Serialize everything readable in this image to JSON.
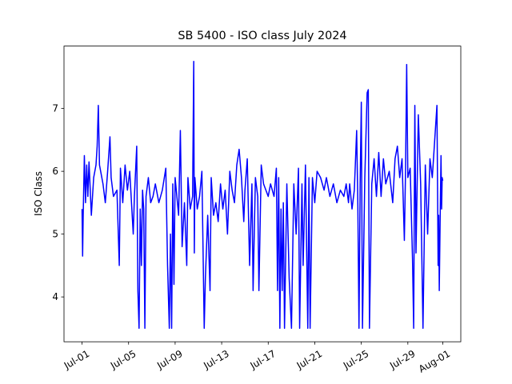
{
  "chart_data": {
    "type": "line",
    "title": "SB 5400 - ISO class July 2024",
    "ylabel": "ISO Class",
    "x": [
      1.0,
      1.05,
      1.1,
      1.2,
      1.3,
      1.4,
      1.5,
      1.6,
      1.8,
      2.0,
      2.2,
      2.3,
      2.4,
      2.5,
      2.8,
      3.0,
      3.2,
      3.4,
      3.5,
      3.7,
      4.0,
      4.2,
      4.3,
      4.5,
      4.7,
      4.9,
      5.1,
      5.4,
      5.5,
      5.7,
      5.8,
      5.9,
      6.0,
      6.1,
      6.2,
      6.3,
      6.4,
      6.5,
      6.7,
      6.9,
      7.1,
      7.3,
      7.6,
      7.9,
      8.2,
      8.35,
      8.5,
      8.6,
      8.7,
      8.8,
      8.9,
      9.0,
      9.3,
      9.45,
      9.6,
      9.8,
      10.0,
      10.1,
      10.3,
      10.5,
      10.6,
      10.65,
      10.7,
      10.9,
      11.1,
      11.3,
      11.5,
      11.6,
      11.8,
      12.0,
      12.1,
      12.3,
      12.5,
      12.7,
      12.9,
      13.1,
      13.3,
      13.5,
      13.7,
      13.9,
      14.1,
      14.3,
      14.5,
      14.7,
      14.9,
      15.0,
      15.2,
      15.4,
      15.6,
      15.7,
      15.9,
      16.1,
      16.2,
      16.4,
      16.6,
      17.0,
      17.2,
      17.5,
      17.7,
      17.8,
      17.9,
      18.0,
      18.1,
      18.2,
      18.3,
      18.4,
      18.6,
      18.8,
      19.0,
      19.2,
      19.4,
      19.6,
      19.7,
      19.9,
      20.0,
      20.2,
      20.4,
      20.5,
      20.6,
      20.8,
      21.0,
      21.2,
      21.5,
      21.8,
      22.0,
      22.3,
      22.6,
      22.9,
      23.2,
      23.5,
      23.7,
      23.9,
      24.0,
      24.2,
      24.4,
      24.6,
      24.7,
      24.8,
      24.9,
      25.0,
      25.1,
      25.3,
      25.5,
      25.6,
      25.7,
      25.9,
      26.1,
      26.3,
      26.5,
      26.7,
      26.9,
      27.1,
      27.4,
      27.7,
      27.9,
      28.1,
      28.3,
      28.5,
      28.7,
      28.8,
      28.9,
      29.0,
      29.2,
      29.4,
      29.5,
      29.6,
      29.7,
      29.9,
      30.1,
      30.3,
      30.5,
      30.7,
      30.9,
      31.1,
      31.5,
      31.6,
      31.65,
      31.7,
      31.8,
      31.85,
      31.9,
      31.95,
      32.0
    ],
    "series": [
      {
        "name": "ISO class",
        "color": "#0000ff",
        "values": [
          5.4,
          4.65,
          5.3,
          6.25,
          5.5,
          6.1,
          5.6,
          6.15,
          5.3,
          5.9,
          6.1,
          6.4,
          7.05,
          6.1,
          5.8,
          5.5,
          6.0,
          6.55,
          5.9,
          5.6,
          5.7,
          4.5,
          6.05,
          5.5,
          6.1,
          5.7,
          6.0,
          5.0,
          5.6,
          6.4,
          4.1,
          3.5,
          5.4,
          4.5,
          5.7,
          5.4,
          3.5,
          5.6,
          5.9,
          5.5,
          5.6,
          5.8,
          5.5,
          5.7,
          6.05,
          4.5,
          3.5,
          5.0,
          3.5,
          5.8,
          4.2,
          5.9,
          5.3,
          6.65,
          4.8,
          5.5,
          4.5,
          5.9,
          5.4,
          5.6,
          7.75,
          4.7,
          5.9,
          5.4,
          5.6,
          6.0,
          3.5,
          4.3,
          5.3,
          4.1,
          5.9,
          5.3,
          5.5,
          5.2,
          5.8,
          5.4,
          5.7,
          5.0,
          6.0,
          5.7,
          5.5,
          6.1,
          6.35,
          5.9,
          5.2,
          5.7,
          6.2,
          4.5,
          5.8,
          4.1,
          5.9,
          5.6,
          4.1,
          6.1,
          5.8,
          5.6,
          5.8,
          5.6,
          6.05,
          4.1,
          5.9,
          3.5,
          5.4,
          4.1,
          5.5,
          3.5,
          5.8,
          4.3,
          3.5,
          5.8,
          5.0,
          6.05,
          3.5,
          5.8,
          4.5,
          6.1,
          3.5,
          5.9,
          3.5,
          5.9,
          5.5,
          6.0,
          5.9,
          5.7,
          5.9,
          5.6,
          5.8,
          5.5,
          5.7,
          5.6,
          5.8,
          5.5,
          5.8,
          5.4,
          5.7,
          6.65,
          5.5,
          3.5,
          5.8,
          7.1,
          3.5,
          5.9,
          7.25,
          7.3,
          3.5,
          5.8,
          6.2,
          5.6,
          6.3,
          5.6,
          6.2,
          5.8,
          6.0,
          5.5,
          6.2,
          6.4,
          5.9,
          6.2,
          4.9,
          6.0,
          7.7,
          5.9,
          6.05,
          4.6,
          3.5,
          7.05,
          4.7,
          6.9,
          5.8,
          3.5,
          6.1,
          5.0,
          6.2,
          5.9,
          7.05,
          4.5,
          5.3,
          4.1,
          5.6,
          6.25,
          5.4,
          5.9,
          5.85
        ]
      }
    ],
    "xlim": [
      -0.55,
      33.55
    ],
    "ylim": [
      3.286,
      7.994
    ],
    "xticks": [
      {
        "value": 1,
        "label": "Jul-01"
      },
      {
        "value": 5,
        "label": "Jul-05"
      },
      {
        "value": 9,
        "label": "Jul-09"
      },
      {
        "value": 13,
        "label": "Jul-13"
      },
      {
        "value": 17,
        "label": "Jul-17"
      },
      {
        "value": 21,
        "label": "Jul-21"
      },
      {
        "value": 25,
        "label": "Jul-25"
      },
      {
        "value": 29,
        "label": "Jul-29"
      },
      {
        "value": 32,
        "label": "Aug-01"
      }
    ],
    "yticks": [
      4,
      5,
      6,
      7
    ],
    "grid": false
  }
}
